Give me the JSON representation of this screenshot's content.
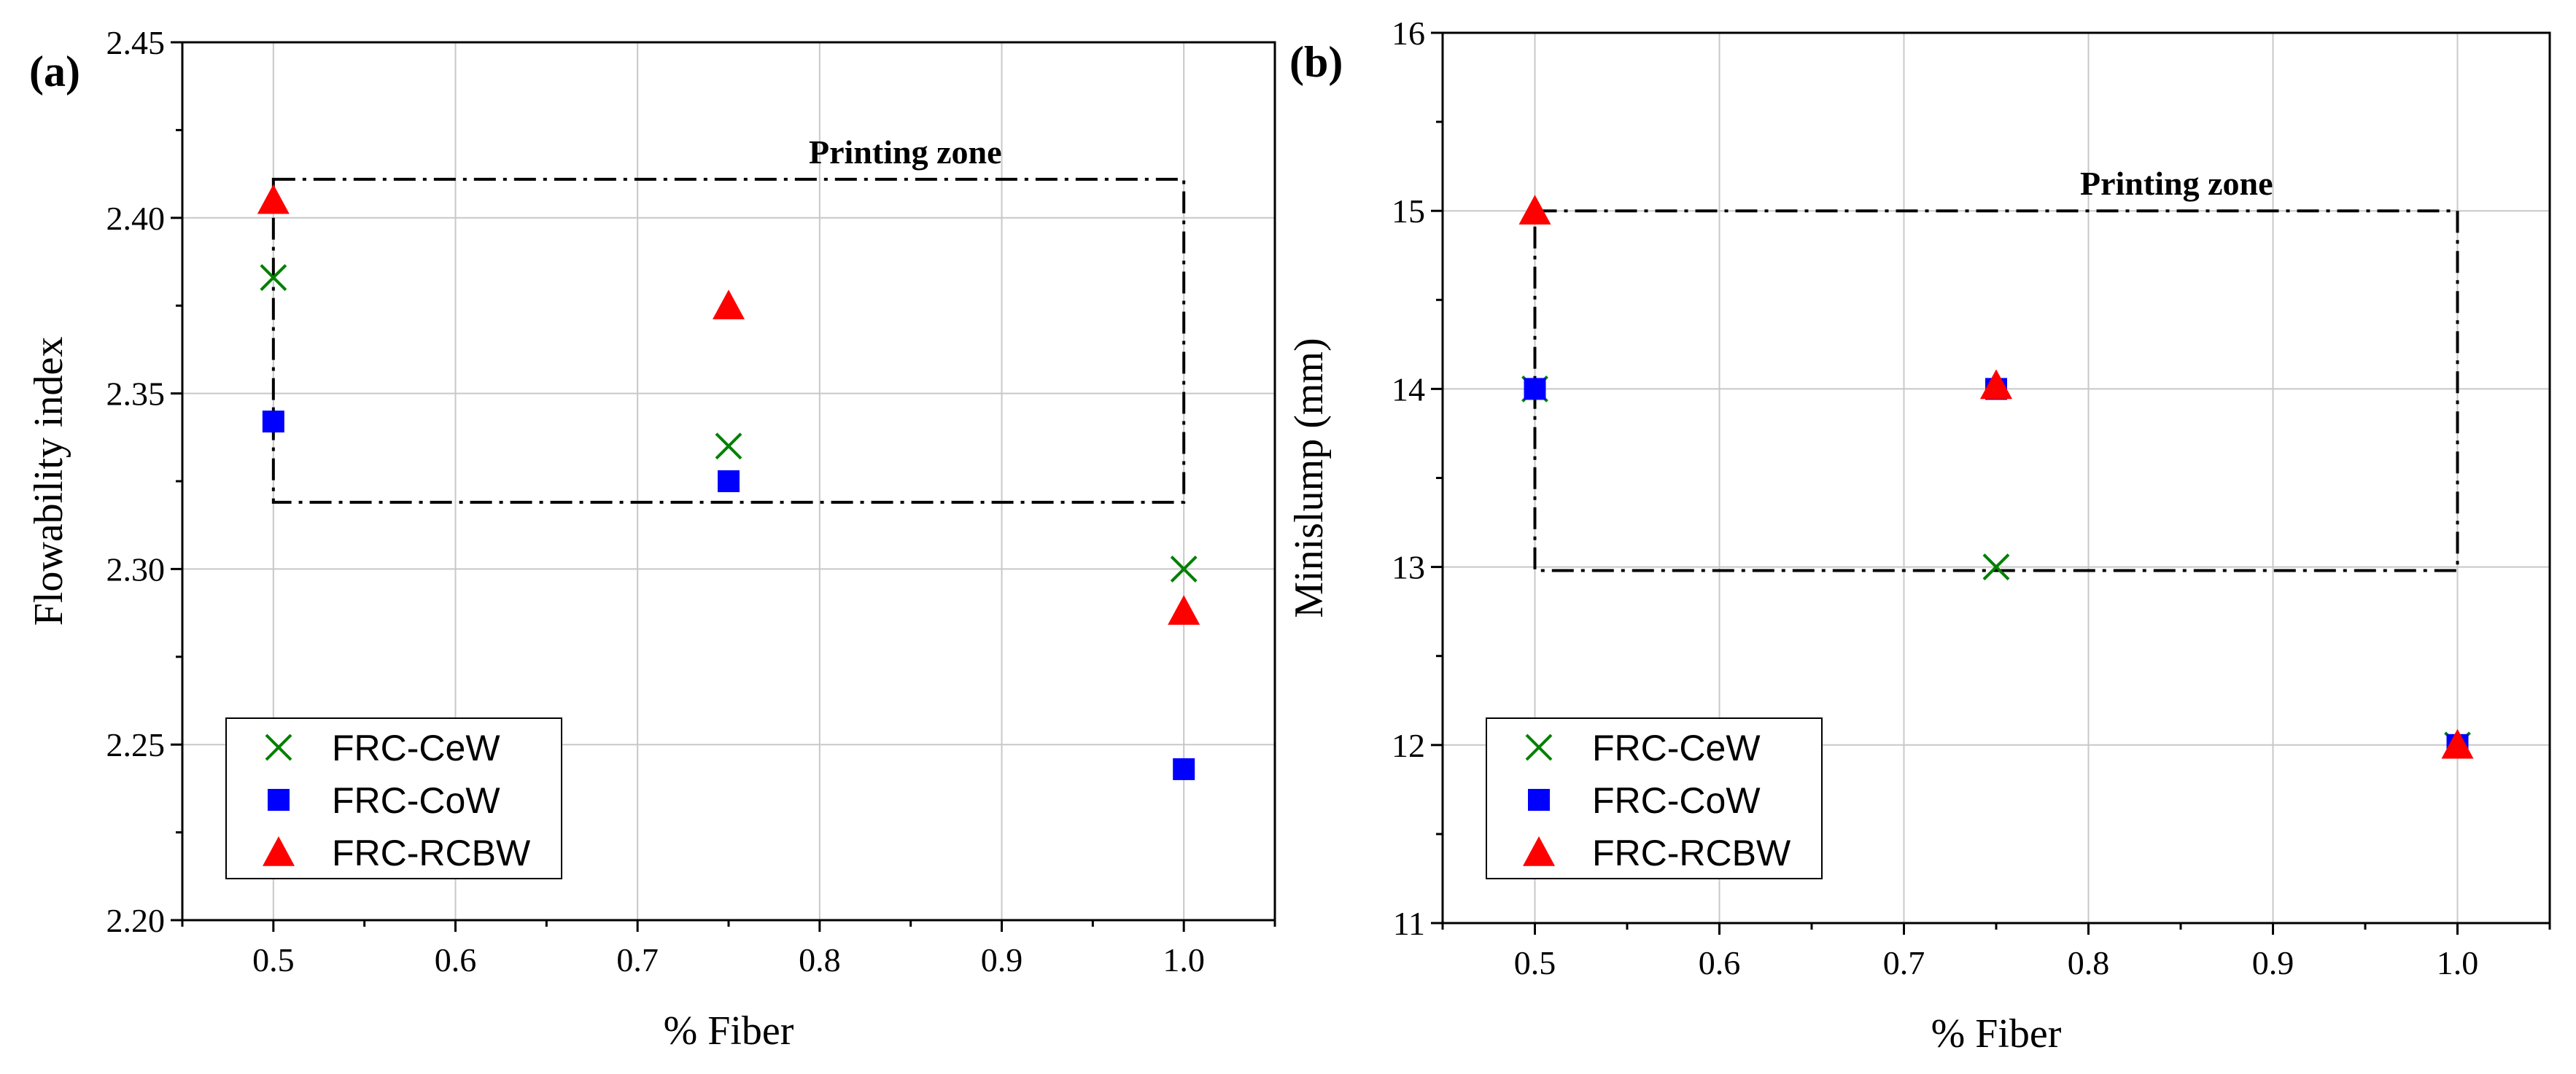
{
  "figure_title": "",
  "chart_data": [
    {
      "type": "scatter",
      "panel_label": "(a)",
      "title": "",
      "xlabel": "% Fiber",
      "ylabel": "Flowability index",
      "xlim": [
        0.45,
        1.05
      ],
      "ylim": [
        2.2,
        2.45
      ],
      "xticks": [
        0.5,
        0.6,
        0.7,
        0.8,
        0.9,
        1.0
      ],
      "xtick_labels": [
        "0.5",
        "0.6",
        "0.7",
        "0.8",
        "0.9",
        "1.0"
      ],
      "yticks": [
        2.2,
        2.25,
        2.3,
        2.35,
        2.4,
        2.45
      ],
      "ytick_labels": [
        "2.20",
        "2.25",
        "2.30",
        "2.35",
        "2.40",
        "2.45"
      ],
      "grid": true,
      "legend_position": "bottom-left",
      "zone": {
        "label": "Printing zone",
        "x": [
          0.5,
          1.0
        ],
        "y": [
          2.319,
          2.411
        ]
      },
      "series": [
        {
          "name": "FRC-CeW",
          "marker": "x",
          "color": "#008000",
          "x": [
            0.5,
            0.75,
            1.0
          ],
          "y": [
            2.383,
            2.335,
            2.3
          ]
        },
        {
          "name": "FRC-CoW",
          "marker": "square",
          "color": "#0000ff",
          "x": [
            0.5,
            0.75,
            1.0
          ],
          "y": [
            2.342,
            2.325,
            2.243
          ]
        },
        {
          "name": "FRC-RCBW",
          "marker": "triangle",
          "color": "#ff0000",
          "x": [
            0.5,
            0.75,
            1.0
          ],
          "y": [
            2.405,
            2.375,
            2.288
          ]
        }
      ]
    },
    {
      "type": "scatter",
      "panel_label": "(b)",
      "title": "",
      "xlabel": "% Fiber",
      "ylabel": "Minislump (mm)",
      "xlim": [
        0.45,
        1.05
      ],
      "ylim": [
        11,
        16
      ],
      "xticks": [
        0.5,
        0.6,
        0.7,
        0.8,
        0.9,
        1.0
      ],
      "xtick_labels": [
        "0.5",
        "0.6",
        "0.7",
        "0.8",
        "0.9",
        "1.0"
      ],
      "yticks": [
        11,
        12,
        13,
        14,
        15,
        16
      ],
      "ytick_labels": [
        "11",
        "12",
        "13",
        "14",
        "15",
        "16"
      ],
      "grid": true,
      "legend_position": "bottom-left",
      "zone": {
        "label": "Printing zone",
        "x": [
          0.5,
          1.0
        ],
        "y": [
          12.98,
          15.0
        ]
      },
      "series": [
        {
          "name": "FRC-CeW",
          "marker": "x",
          "color": "#008000",
          "x": [
            0.5,
            0.75,
            1.0
          ],
          "y": [
            14.0,
            13.0,
            12.0
          ]
        },
        {
          "name": "FRC-CoW",
          "marker": "square",
          "color": "#0000ff",
          "x": [
            0.5,
            0.75,
            1.0
          ],
          "y": [
            14.0,
            14.0,
            12.0
          ]
        },
        {
          "name": "FRC-RCBW",
          "marker": "triangle",
          "color": "#ff0000",
          "x": [
            0.5,
            0.75,
            1.0
          ],
          "y": [
            15.0,
            14.02,
            12.0
          ]
        }
      ]
    }
  ]
}
